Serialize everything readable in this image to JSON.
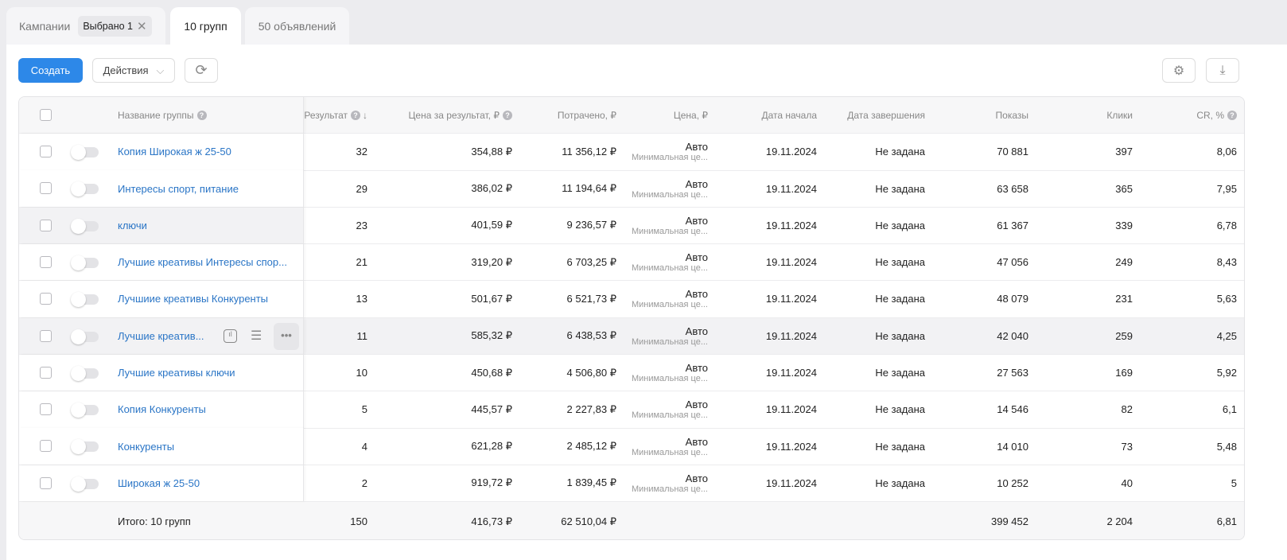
{
  "tabs": {
    "campaigns": "Кампании",
    "selected": "Выбрано 1",
    "groups": "10 групп",
    "ads": "50 объявлений"
  },
  "toolbar": {
    "create": "Создать",
    "actions": "Действия"
  },
  "headers": {
    "name": "Название группы",
    "result": "Результат",
    "cpr": "Цена за результат, ₽",
    "spent": "Потрачено, ₽",
    "price": "Цена, ₽",
    "start": "Дата начала",
    "end": "Дата завершения",
    "shows": "Показы",
    "clicks": "Клики",
    "cr": "CR, %"
  },
  "rows": [
    {
      "name": "Копия Широкая ж 25-50",
      "result": "32",
      "cpr": "354,88 ₽",
      "spent": "11 356,12 ₽",
      "price": "Авто",
      "price_sub": "Минимальная це...",
      "start": "19.11.2024",
      "end": "Не задана",
      "shows": "70 881",
      "clicks": "397",
      "cr": "8,06"
    },
    {
      "name": "Интересы спорт, питание",
      "result": "29",
      "cpr": "386,02 ₽",
      "spent": "11 194,64 ₽",
      "price": "Авто",
      "price_sub": "Минимальная це...",
      "start": "19.11.2024",
      "end": "Не задана",
      "shows": "63 658",
      "clicks": "365",
      "cr": "7,95"
    },
    {
      "name": "ключи",
      "result": "23",
      "cpr": "401,59 ₽",
      "spent": "9 236,57 ₽",
      "price": "Авто",
      "price_sub": "Минимальная це...",
      "start": "19.11.2024",
      "end": "Не задана",
      "shows": "61 367",
      "clicks": "339",
      "cr": "6,78"
    },
    {
      "name": "Лучшие креативы Интересы спор...",
      "result": "21",
      "cpr": "319,20 ₽",
      "spent": "6 703,25 ₽",
      "price": "Авто",
      "price_sub": "Минимальная це...",
      "start": "19.11.2024",
      "end": "Не задана",
      "shows": "47 056",
      "clicks": "249",
      "cr": "8,43"
    },
    {
      "name": "Лучшиие креативы Конкуренты",
      "result": "13",
      "cpr": "501,67 ₽",
      "spent": "6 521,73 ₽",
      "price": "Авто",
      "price_sub": "Минимальная це...",
      "start": "19.11.2024",
      "end": "Не задана",
      "shows": "48 079",
      "clicks": "231",
      "cr": "5,63"
    },
    {
      "name": "Лучшие креатив...",
      "result": "11",
      "cpr": "585,32 ₽",
      "spent": "6 438,53 ₽",
      "price": "Авто",
      "price_sub": "Минимальная це...",
      "start": "19.11.2024",
      "end": "Не задана",
      "shows": "42 040",
      "clicks": "259",
      "cr": "4,25"
    },
    {
      "name": "Лучшие креативы ключи",
      "result": "10",
      "cpr": "450,68 ₽",
      "spent": "4 506,80 ₽",
      "price": "Авто",
      "price_sub": "Минимальная це...",
      "start": "19.11.2024",
      "end": "Не задана",
      "shows": "27 563",
      "clicks": "169",
      "cr": "5,92"
    },
    {
      "name": "Копия Конкуренты",
      "result": "5",
      "cpr": "445,57 ₽",
      "spent": "2 227,83 ₽",
      "price": "Авто",
      "price_sub": "Минимальная це...",
      "start": "19.11.2024",
      "end": "Не задана",
      "shows": "14 546",
      "clicks": "82",
      "cr": "6,1"
    },
    {
      "name": "Конкуренты",
      "result": "4",
      "cpr": "621,28 ₽",
      "spent": "2 485,12 ₽",
      "price": "Авто",
      "price_sub": "Минимальная це...",
      "start": "19.11.2024",
      "end": "Не задана",
      "shows": "14 010",
      "clicks": "73",
      "cr": "5,48"
    },
    {
      "name": "Широкая ж 25-50",
      "result": "2",
      "cpr": "919,72 ₽",
      "spent": "1 839,45 ₽",
      "price": "Авто",
      "price_sub": "Минимальная це...",
      "start": "19.11.2024",
      "end": "Не задана",
      "shows": "10 252",
      "clicks": "40",
      "cr": "5"
    }
  ],
  "totals": {
    "label": "Итого: 10 групп",
    "result": "150",
    "cpr": "416,73 ₽",
    "spent": "62 510,04 ₽",
    "shows": "399 452",
    "clicks": "2 204",
    "cr": "6,81"
  }
}
